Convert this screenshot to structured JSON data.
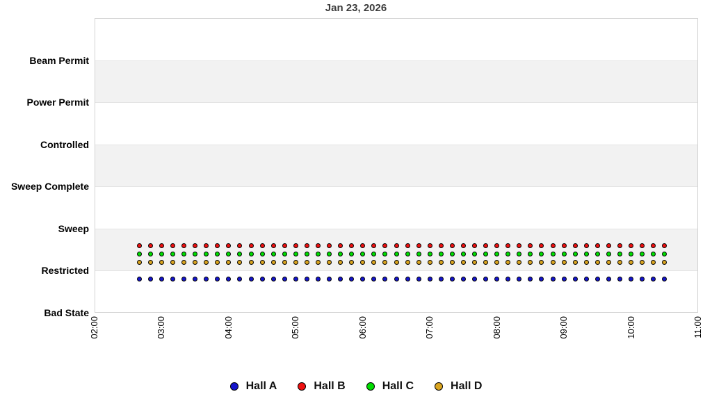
{
  "page": {
    "background": "#ffffff"
  },
  "chart_data": {
    "type": "scatter",
    "title": "Jan 23, 2026",
    "title_color": "#3c3c3c",
    "x_axis": {
      "tick_labels": [
        "02:00",
        "03:00",
        "04:00",
        "05:00",
        "06:00",
        "07:00",
        "08:00",
        "09:00",
        "10:00",
        "11:00"
      ],
      "range_hours": [
        2,
        11
      ],
      "tick_rotation_deg": 90
    },
    "y_axis": {
      "categories": [
        "Bad State",
        "Restricted",
        "Sweep",
        "Sweep Complete",
        "Controlled",
        "Power Permit",
        "Beam Permit"
      ],
      "order": "bottom-to-top"
    },
    "band_fill": "#f2f2f2",
    "gridline_color": "#e4e4e4",
    "border_color": "#d3d3d3",
    "times": [
      "02:40",
      "02:50",
      "03:00",
      "03:10",
      "03:20",
      "03:30",
      "03:40",
      "03:50",
      "04:00",
      "04:10",
      "04:20",
      "04:30",
      "04:40",
      "04:50",
      "05:00",
      "05:10",
      "05:20",
      "05:30",
      "05:40",
      "05:50",
      "06:00",
      "06:10",
      "06:20",
      "06:30",
      "06:40",
      "06:50",
      "07:00",
      "07:10",
      "07:20",
      "07:30",
      "07:40",
      "07:50",
      "08:00",
      "08:10",
      "08:20",
      "08:30",
      "08:40",
      "08:50",
      "09:00",
      "09:10",
      "09:20",
      "09:30",
      "09:40",
      "09:50",
      "10:00",
      "10:10",
      "10:20",
      "10:30"
    ],
    "series": [
      {
        "name": "Hall A",
        "color": "#1414cc",
        "dodge_offset": -0.2,
        "values": [
          "Restricted",
          "Restricted",
          "Restricted",
          "Restricted",
          "Restricted",
          "Restricted",
          "Restricted",
          "Restricted",
          "Restricted",
          "Restricted",
          "Restricted",
          "Restricted",
          "Restricted",
          "Restricted",
          "Restricted",
          "Restricted",
          "Restricted",
          "Restricted",
          "Restricted",
          "Restricted",
          "Restricted",
          "Restricted",
          "Restricted",
          "Restricted",
          "Restricted",
          "Restricted",
          "Restricted",
          "Restricted",
          "Restricted",
          "Restricted",
          "Restricted",
          "Restricted",
          "Restricted",
          "Restricted",
          "Restricted",
          "Restricted",
          "Restricted",
          "Restricted",
          "Restricted",
          "Restricted",
          "Restricted",
          "Restricted",
          "Restricted",
          "Restricted",
          "Restricted",
          "Restricted",
          "Restricted",
          "Restricted"
        ]
      },
      {
        "name": "Hall B",
        "color": "#ee1010",
        "dodge_offset": 0.6,
        "values": [
          "Restricted",
          "Restricted",
          "Restricted",
          "Restricted",
          "Restricted",
          "Restricted",
          "Restricted",
          "Restricted",
          "Restricted",
          "Restricted",
          "Restricted",
          "Restricted",
          "Restricted",
          "Restricted",
          "Restricted",
          "Restricted",
          "Restricted",
          "Restricted",
          "Restricted",
          "Restricted",
          "Restricted",
          "Restricted",
          "Restricted",
          "Restricted",
          "Restricted",
          "Restricted",
          "Restricted",
          "Restricted",
          "Restricted",
          "Restricted",
          "Restricted",
          "Restricted",
          "Restricted",
          "Restricted",
          "Restricted",
          "Restricted",
          "Restricted",
          "Restricted",
          "Restricted",
          "Restricted",
          "Restricted",
          "Restricted",
          "Restricted",
          "Restricted",
          "Restricted",
          "Restricted",
          "Restricted",
          "Restricted"
        ]
      },
      {
        "name": "Hall C",
        "color": "#00dd00",
        "dodge_offset": 0.4,
        "values": [
          "Restricted",
          "Restricted",
          "Restricted",
          "Restricted",
          "Restricted",
          "Restricted",
          "Restricted",
          "Restricted",
          "Restricted",
          "Restricted",
          "Restricted",
          "Restricted",
          "Restricted",
          "Restricted",
          "Restricted",
          "Restricted",
          "Restricted",
          "Restricted",
          "Restricted",
          "Restricted",
          "Restricted",
          "Restricted",
          "Restricted",
          "Restricted",
          "Restricted",
          "Restricted",
          "Restricted",
          "Restricted",
          "Restricted",
          "Restricted",
          "Restricted",
          "Restricted",
          "Restricted",
          "Restricted",
          "Restricted",
          "Restricted",
          "Restricted",
          "Restricted",
          "Restricted",
          "Restricted",
          "Restricted",
          "Restricted",
          "Restricted",
          "Restricted",
          "Restricted",
          "Restricted",
          "Restricted",
          "Restricted"
        ]
      },
      {
        "name": "Hall D",
        "color": "#daa520",
        "dodge_offset": 0.2,
        "values": [
          "Restricted",
          "Restricted",
          "Restricted",
          "Restricted",
          "Restricted",
          "Restricted",
          "Restricted",
          "Restricted",
          "Restricted",
          "Restricted",
          "Restricted",
          "Restricted",
          "Restricted",
          "Restricted",
          "Restricted",
          "Restricted",
          "Restricted",
          "Restricted",
          "Restricted",
          "Restricted",
          "Restricted",
          "Restricted",
          "Restricted",
          "Restricted",
          "Restricted",
          "Restricted",
          "Restricted",
          "Restricted",
          "Restricted",
          "Restricted",
          "Restricted",
          "Restricted",
          "Restricted",
          "Restricted",
          "Restricted",
          "Restricted",
          "Restricted",
          "Restricted",
          "Restricted",
          "Restricted",
          "Restricted",
          "Restricted",
          "Restricted",
          "Restricted",
          "Restricted",
          "Restricted",
          "Restricted",
          "Restricted"
        ]
      }
    ],
    "legend": {
      "position": "bottom",
      "entries": [
        "Hall A",
        "Hall B",
        "Hall C",
        "Hall D"
      ]
    }
  }
}
